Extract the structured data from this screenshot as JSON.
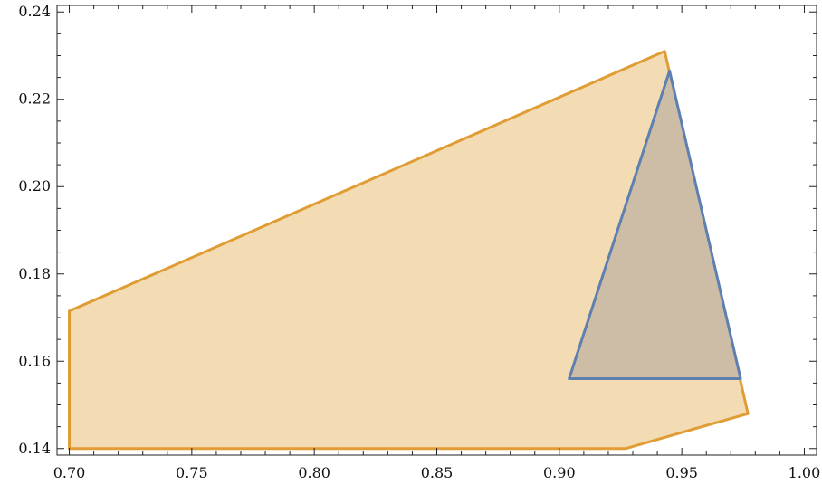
{
  "chart_data": {
    "type": "area",
    "title": "",
    "xlabel": "",
    "ylabel": "",
    "xlim": [
      0.695,
      1.005
    ],
    "ylim": [
      0.1385,
      0.2415
    ],
    "x_ticks": [
      "0.70",
      "0.75",
      "0.80",
      "0.85",
      "0.90",
      "0.95",
      "1.00"
    ],
    "y_ticks": [
      "0.14",
      "0.16",
      "0.18",
      "0.20",
      "0.22",
      "0.24"
    ],
    "grid": false,
    "series": [
      {
        "color_fill": "#f3dbb3",
        "color_line": "#e09d35",
        "points": [
          [
            0.7,
            0.14
          ],
          [
            0.927,
            0.14
          ],
          [
            0.977,
            0.148
          ],
          [
            0.943,
            0.231
          ],
          [
            0.7,
            0.1715
          ]
        ]
      },
      {
        "color_fill": "#cdbda6",
        "color_line": "#5e80b0",
        "points": [
          [
            0.904,
            0.156
          ],
          [
            0.974,
            0.156
          ],
          [
            0.945,
            0.2265
          ]
        ]
      }
    ]
  }
}
